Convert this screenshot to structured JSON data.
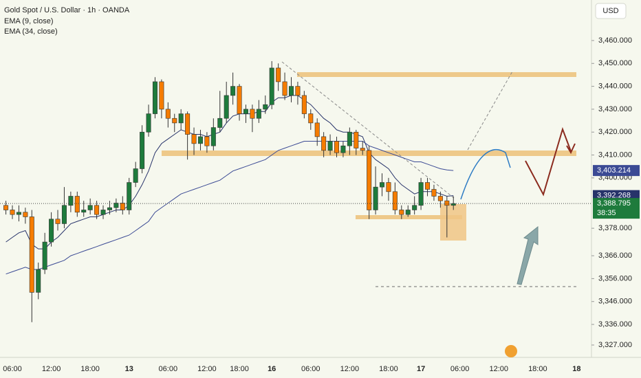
{
  "chart_data": {
    "type": "candlestick",
    "title": "Gold Spot / U.S. Dollar · 1h · OANDA",
    "currency": "USD",
    "categories": [
      null,
      "06:00",
      null,
      null,
      null,
      null,
      null,
      "12:00",
      null,
      null,
      null,
      null,
      null,
      "18:00",
      null,
      null,
      null,
      null,
      null,
      "13",
      null,
      null,
      null,
      null,
      null,
      "06:00",
      null,
      null,
      null,
      null,
      null,
      "12:00",
      null,
      null,
      null,
      null,
      "18:00",
      null,
      null,
      null,
      null,
      "16",
      null,
      null,
      null,
      null,
      null,
      "06:00",
      null,
      null,
      null,
      null,
      null,
      "12:00",
      null,
      null,
      null,
      null,
      null,
      "18:00",
      null,
      null,
      null,
      null,
      "17",
      null,
      null,
      null,
      null,
      null,
      "06:00",
      null,
      null,
      null,
      null,
      null,
      "12:00",
      null,
      null,
      null,
      null,
      null,
      "18:00",
      null,
      null,
      null,
      null,
      null,
      "18"
    ],
    "open": [
      3388,
      3386,
      3384,
      3385,
      3383,
      3350,
      3360,
      3372,
      3382,
      3380,
      3388,
      3392,
      3385,
      3386,
      3388,
      3384,
      3386,
      3387,
      3389,
      3386,
      3398,
      3404,
      3420,
      3428,
      3442,
      3430,
      3426,
      3424,
      3428,
      3419,
      3415,
      3418,
      3414,
      3422,
      3426,
      3436,
      3440,
      3428,
      3430,
      3426,
      3430,
      3432,
      3448,
      3442,
      3436,
      3440,
      3436,
      3428,
      3424,
      3418,
      3412,
      3416,
      3411,
      3414,
      3420,
      3413,
      3412,
      3386,
      3396,
      3398,
      3394,
      3386,
      3384,
      3386,
      3388,
      3398,
      3395,
      3392,
      3390,
      3388,
      null,
      null,
      null,
      null,
      null,
      null,
      null,
      null,
      null,
      null,
      null,
      null,
      null,
      null,
      null,
      null,
      null,
      null,
      null
    ],
    "high": [
      3390,
      3388,
      3388,
      3387,
      3386,
      3363,
      3376,
      3385,
      3386,
      3396,
      3394,
      3394,
      3390,
      3391,
      3390,
      3388,
      3390,
      3391,
      3392,
      3400,
      3407,
      3423,
      3432,
      3444,
      3443,
      3433,
      3428,
      3430,
      3429,
      3422,
      3421,
      3420,
      3426,
      3438,
      3442,
      3446,
      3441,
      3432,
      3432,
      3434,
      3436,
      3451,
      3450,
      3446,
      3444,
      3442,
      3438,
      3430,
      3426,
      3420,
      3419,
      3418,
      3416,
      3422,
      3421,
      3416,
      3414,
      3405,
      3402,
      3400,
      3398,
      3388,
      3388,
      3392,
      3400,
      3400,
      3397,
      3394,
      3392,
      3392,
      null,
      null,
      null,
      null,
      null,
      null,
      null,
      null,
      null,
      null,
      null,
      null,
      null,
      null,
      null,
      null,
      null,
      null,
      null
    ],
    "low": [
      3384,
      3382,
      3381,
      3380,
      3337,
      3347,
      3358,
      3370,
      3377,
      3378,
      3385,
      3383,
      3383,
      3384,
      3382,
      3382,
      3384,
      3385,
      3384,
      3384,
      3396,
      3402,
      3418,
      3426,
      3426,
      3422,
      3420,
      3421,
      3408,
      3410,
      3412,
      3411,
      3412,
      3420,
      3424,
      3432,
      3425,
      3424,
      3420,
      3424,
      3428,
      3430,
      3438,
      3434,
      3433,
      3432,
      3426,
      3421,
      3414,
      3409,
      3410,
      3409,
      3409,
      3410,
      3410,
      3410,
      3382,
      3384,
      3392,
      3390,
      3384,
      3382,
      3383,
      3384,
      3386,
      3392,
      3390,
      3387,
      3374,
      3386,
      null,
      null,
      null,
      null,
      null,
      null,
      null,
      null,
      null,
      null,
      null,
      null,
      null,
      null,
      null,
      null,
      null,
      null,
      null
    ],
    "close": [
      3386,
      3384,
      3385,
      3383,
      3350,
      3360,
      3372,
      3382,
      3380,
      3388,
      3392,
      3385,
      3386,
      3388,
      3384,
      3386,
      3387,
      3389,
      3386,
      3398,
      3404,
      3420,
      3428,
      3442,
      3430,
      3426,
      3424,
      3428,
      3419,
      3415,
      3418,
      3414,
      3422,
      3426,
      3436,
      3440,
      3428,
      3430,
      3426,
      3430,
      3432,
      3448,
      3442,
      3436,
      3440,
      3436,
      3428,
      3424,
      3418,
      3412,
      3416,
      3411,
      3414,
      3420,
      3413,
      3412,
      3386,
      3396,
      3398,
      3394,
      3386,
      3384,
      3386,
      3388,
      3398,
      3395,
      3392,
      3390,
      3388,
      3388.795,
      null,
      null,
      null,
      null,
      null,
      null,
      null,
      null,
      null,
      null,
      null,
      null,
      null,
      null,
      null,
      null,
      null,
      null,
      null
    ],
    "up_color": "#1e7b3c",
    "down_color": "#f57c00",
    "series": [
      {
        "name": "EMA (9, close)",
        "color": "#27336a",
        "last_label": "3,392.268",
        "values": [
          3372,
          3374,
          3376,
          3377,
          3371,
          3369,
          3369,
          3372,
          3374,
          3377,
          3380,
          3381,
          3382,
          3383,
          3383,
          3384,
          3385,
          3386,
          3386,
          3388,
          3392,
          3397,
          3403,
          3411,
          3415,
          3417,
          3419,
          3421,
          3420,
          3419,
          3419,
          3418,
          3419,
          3420,
          3424,
          3427,
          3428,
          3428,
          3428,
          3429,
          3429,
          3433,
          3435,
          3435,
          3436,
          3436,
          3434,
          3432,
          3429,
          3426,
          3424,
          3421,
          3420,
          3420,
          3419,
          3418,
          3411,
          3408,
          3406,
          3404,
          3400,
          3397,
          3395,
          3393,
          3394,
          3394,
          3394,
          3393,
          3392,
          3392.268,
          null,
          null,
          null,
          null,
          null,
          null,
          null,
          null,
          null,
          null,
          null,
          null,
          null,
          null,
          null,
          null,
          null,
          null,
          null
        ]
      },
      {
        "name": "EMA (34, close)",
        "color": "#3b4a94",
        "last_label": "3,403.214",
        "values": [
          3358,
          3359,
          3360,
          3361,
          3360,
          3360,
          3361,
          3362,
          3363,
          3364,
          3366,
          3367,
          3368,
          3369,
          3370,
          3371,
          3372,
          3373,
          3374,
          3375,
          3377,
          3379,
          3381,
          3385,
          3387,
          3389,
          3391,
          3393,
          3394,
          3395,
          3396,
          3397,
          3398,
          3399,
          3401,
          3403,
          3404,
          3405,
          3406,
          3407,
          3408,
          3410,
          3412,
          3413,
          3414,
          3415,
          3416,
          3416,
          3416,
          3416,
          3416,
          3416,
          3416,
          3416,
          3416,
          3416,
          3414,
          3413,
          3412,
          3411,
          3410,
          3409,
          3408,
          3407,
          3407,
          3406,
          3405,
          3404,
          3403.5,
          3403.214,
          null,
          null,
          null,
          null,
          null,
          null,
          null,
          null,
          null,
          null,
          null,
          null,
          null,
          null,
          null,
          null,
          null,
          null,
          null
        ]
      }
    ],
    "last_price": 3388.795,
    "last_price_label": "3,388.795",
    "countdown": "38:35",
    "ylim": [
      3321.6,
      3477.7
    ],
    "yticks": [
      {
        "value": 3460,
        "label": "3,460.000"
      },
      {
        "value": 3450,
        "label": "3,450.000"
      },
      {
        "value": 3440,
        "label": "3,440.000"
      },
      {
        "value": 3430,
        "label": "3,430.000"
      },
      {
        "value": 3420,
        "label": "3,420.000"
      },
      {
        "value": 3410,
        "label": "3,410.000"
      },
      {
        "value": 3400,
        "label": "3,400.000"
      },
      {
        "value": 3378,
        "label": "3,378.000"
      },
      {
        "value": 3366,
        "label": "3,366.000"
      },
      {
        "value": 3356,
        "label": "3,356.000"
      },
      {
        "value": 3346,
        "label": "3,346.000"
      },
      {
        "value": 3336,
        "label": "3,336.000"
      },
      {
        "value": 3327,
        "label": "3,327.000"
      }
    ]
  }
}
